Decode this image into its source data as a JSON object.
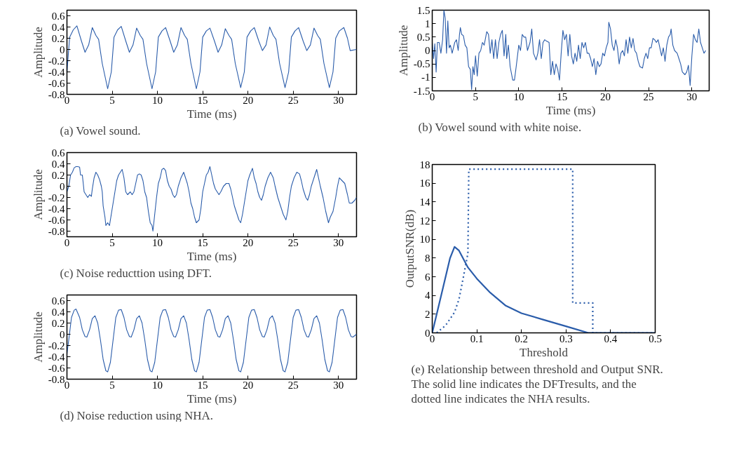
{
  "chart_data": [
    {
      "type": "line",
      "xlabel": "Time (ms)",
      "ylabel": "Amplitude",
      "annotations": [
        "(a) Vowel sound."
      ],
      "xlim": [
        0,
        32
      ],
      "ylim": [
        -0.8,
        0.7
      ],
      "xticks": [
        0,
        5,
        10,
        15,
        20,
        25,
        30
      ],
      "yticks": [
        -0.8,
        -0.6,
        -0.4,
        -0.2,
        0,
        0.2,
        0.4,
        0.6
      ],
      "grid": false,
      "line_style": "solid",
      "x": [
        0,
        0.3,
        0.7,
        1.1,
        1.6,
        2.0,
        2.4,
        2.8,
        3.2,
        3.5,
        3.9,
        4.5,
        4.9,
        5.2,
        5.6,
        6.0,
        6.5,
        6.9,
        7.3,
        7.7,
        8.1,
        8.4,
        8.8,
        9.4,
        9.8,
        10.1,
        10.5,
        10.9,
        11.4,
        11.8,
        12.2,
        12.6,
        13.0,
        13.3,
        13.7,
        14.3,
        14.7,
        15.0,
        15.4,
        15.8,
        16.3,
        16.7,
        17.1,
        17.5,
        17.9,
        18.2,
        18.6,
        19.2,
        19.6,
        19.9,
        20.3,
        20.7,
        21.2,
        21.6,
        22.0,
        22.4,
        22.8,
        23.1,
        23.5,
        24.1,
        24.5,
        24.8,
        25.2,
        25.6,
        26.1,
        26.5,
        26.9,
        27.3,
        27.7,
        28.0,
        28.4,
        29.0,
        29.4,
        29.7,
        30.1,
        30.6,
        31.0,
        31.3,
        32.0
      ],
      "series": [
        {
          "color": "#2a5caa",
          "values": [
            -0.4,
            0.22,
            0.35,
            0.42,
            0.15,
            -0.05,
            0.08,
            0.39,
            0.25,
            0.18,
            -0.25,
            -0.7,
            -0.4,
            0.22,
            0.35,
            0.41,
            0.15,
            -0.05,
            0.08,
            0.38,
            0.25,
            0.18,
            -0.25,
            -0.7,
            -0.4,
            0.22,
            0.33,
            0.39,
            0.15,
            -0.05,
            0.08,
            0.39,
            0.25,
            0.18,
            -0.25,
            -0.7,
            -0.4,
            0.22,
            0.33,
            0.38,
            0.15,
            -0.05,
            0.08,
            0.37,
            0.25,
            0.18,
            -0.25,
            -0.68,
            -0.4,
            0.22,
            0.33,
            0.39,
            0.15,
            -0.02,
            0.08,
            0.4,
            0.25,
            0.18,
            -0.25,
            -0.68,
            -0.4,
            0.22,
            0.33,
            0.39,
            0.15,
            -0.02,
            0.08,
            0.38,
            0.25,
            0.18,
            -0.25,
            -0.68,
            -0.4,
            0.2,
            0.33,
            0.39,
            0.2,
            -0.02,
            0.0
          ]
        }
      ]
    },
    {
      "type": "line",
      "xlabel": "Time (ms)",
      "ylabel": "Amplitude",
      "annotations": [
        "(b) Vowel sound with white noise."
      ],
      "xlim": [
        0,
        32
      ],
      "ylim": [
        -1.5,
        1.5
      ],
      "xticks": [
        0,
        5,
        10,
        15,
        20,
        25,
        30
      ],
      "yticks": [
        -1.5,
        -1,
        -0.5,
        0,
        0.5,
        1,
        1.5
      ],
      "grid": false,
      "line_style": "solid",
      "x": [
        0,
        0.15,
        0.3,
        0.45,
        0.6,
        0.8,
        1.0,
        1.2,
        1.35,
        1.5,
        1.65,
        1.8,
        1.95,
        2.1,
        2.3,
        2.6,
        2.8,
        3.0,
        3.15,
        3.25,
        3.4,
        3.6,
        3.8,
        4.0,
        4.2,
        4.4,
        4.55,
        4.7,
        4.85,
        5.0,
        5.2,
        5.4,
        5.6,
        5.8,
        6.0,
        6.3,
        6.5,
        6.7,
        6.9,
        7.1,
        7.3,
        7.5,
        7.7,
        7.9,
        8.1,
        8.3,
        8.5,
        8.6,
        8.8,
        9.0,
        9.3,
        9.5,
        9.7,
        10.0,
        10.2,
        10.4,
        10.6,
        10.8,
        11.0,
        11.3,
        11.5,
        11.7,
        12.0,
        12.2,
        12.4,
        12.6,
        12.8,
        13.0,
        13.2,
        13.5,
        13.7,
        13.9,
        14.1,
        14.3,
        14.5,
        14.7,
        14.9,
        15.1,
        15.3,
        15.5,
        15.7,
        15.9,
        16.1,
        16.3,
        16.5,
        16.7,
        16.9,
        17.1,
        17.3,
        17.5,
        17.7,
        17.9,
        18.1,
        18.3,
        18.5,
        18.7,
        18.9,
        19.1,
        19.3,
        19.5,
        19.7,
        19.9,
        20.1,
        20.3,
        20.4,
        20.6,
        20.8,
        21.0,
        21.2,
        21.4,
        21.6,
        21.8,
        22.0,
        22.2,
        22.4,
        22.6,
        22.8,
        23.0,
        23.2,
        23.4,
        23.6,
        23.8,
        24.0,
        24.3,
        24.5,
        24.7,
        24.9,
        25.1,
        25.3,
        25.5,
        25.7,
        25.9,
        26.1,
        26.3,
        26.5,
        26.7,
        26.9,
        27.1,
        27.3,
        27.5,
        27.6,
        27.8,
        28.0,
        28.3,
        28.5,
        28.7,
        28.9,
        29.2,
        29.4,
        29.6,
        29.8,
        30.0,
        30.2,
        30.4,
        30.6,
        30.8,
        31.0,
        31.2,
        31.4,
        31.6
      ],
      "series": [
        {
          "color": "#2a5caa",
          "values": [
            0.3,
            -0.3,
            0.25,
            -0.8,
            0.3,
            0.3,
            -0.1,
            0.4,
            1.5,
            1.2,
            -0.1,
            1.1,
            0.1,
            0.2,
            -0.1,
            0.3,
            0.4,
            0.0,
            0.6,
            0.85,
            0.6,
            0.55,
            0.2,
            0.1,
            -0.6,
            -0.7,
            -1.45,
            -0.6,
            -0.9,
            -0.2,
            -0.95,
            -0.1,
            0.0,
            0.3,
            0.2,
            0.7,
            0.6,
            -0.1,
            0.4,
            -0.3,
            0.4,
            -0.3,
            0.3,
            0.6,
            0.75,
            -0.2,
            0.6,
            -0.3,
            0.2,
            -0.6,
            -1.1,
            -1.1,
            -0.6,
            0.2,
            0.0,
            0.6,
            0.5,
            0.5,
            0.0,
            0.3,
            0.8,
            -0.1,
            -0.35,
            -0.1,
            0.4,
            -0.3,
            0.3,
            0.4,
            0.35,
            0.3,
            -0.9,
            -0.4,
            -0.9,
            -0.5,
            -0.7,
            -1.1,
            -0.1,
            0.75,
            0.4,
            0.6,
            -0.2,
            0.6,
            -0.2,
            -0.5,
            -0.1,
            -0.4,
            0.2,
            -0.3,
            0.3,
            0.1,
            0.3,
            -0.1,
            -0.1,
            -0.3,
            -0.6,
            -0.3,
            -0.9,
            -0.4,
            -0.6,
            -0.5,
            -0.1,
            -0.2,
            0.1,
            0.3,
            1.05,
            0.8,
            0.2,
            0.0,
            0.4,
            0.1,
            -0.5,
            -0.1,
            0.0,
            -0.2,
            0.4,
            -0.1,
            0.5,
            0.1,
            0.45,
            0.0,
            -0.1,
            -0.4,
            -0.6,
            -0.65,
            -0.3,
            -0.1,
            -0.3,
            0.1,
            0.1,
            0.45,
            0.4,
            0.3,
            0.4,
            0.1,
            -0.2,
            0.1,
            -0.4,
            0.2,
            0.5,
            0.6,
            0.8,
            0.2,
            0.0,
            -0.1,
            -0.3,
            -0.5,
            -0.8,
            -0.9,
            -0.8,
            -0.55,
            -1.3,
            -0.2,
            0.6,
            0.4,
            0.3,
            0.8,
            0.3,
            0.1,
            -0.1,
            0.0
          ]
        }
      ]
    },
    {
      "type": "line",
      "xlabel": "Time (ms)",
      "ylabel": "Amplitude",
      "annotations": [
        "(c) Noise reducttion using DFT."
      ],
      "xlim": [
        0,
        32
      ],
      "ylim": [
        -0.9,
        0.6
      ],
      "xticks": [
        0,
        5,
        10,
        15,
        20,
        25,
        30
      ],
      "yticks": [
        -0.8,
        -0.6,
        -0.4,
        -0.2,
        0,
        0.2,
        0.4,
        0.6
      ],
      "grid": false,
      "line_style": "solid",
      "x": [
        0,
        0.2,
        0.4,
        0.6,
        0.8,
        1.0,
        1.2,
        1.4,
        1.5,
        1.7,
        1.8,
        1.9,
        2.1,
        2.3,
        2.5,
        2.7,
        2.8,
        3.0,
        3.2,
        3.4,
        3.6,
        3.8,
        3.9,
        4.0,
        4.2,
        4.3,
        4.5,
        4.7,
        4.9,
        5.1,
        5.3,
        5.5,
        5.7,
        5.9,
        6.1,
        6.3,
        6.5,
        6.7,
        7.0,
        7.2,
        7.4,
        7.6,
        7.8,
        8.0,
        8.2,
        8.4,
        8.6,
        8.8,
        9.0,
        9.2,
        9.4,
        9.5,
        9.7,
        9.9,
        10.1,
        10.3,
        10.5,
        10.7,
        10.9,
        11.1,
        11.3,
        11.5,
        11.7,
        11.9,
        12.1,
        12.3,
        12.6,
        12.9,
        13.1,
        13.3,
        13.5,
        13.7,
        13.9,
        14.1,
        14.3,
        14.6,
        14.8,
        15.0,
        15.2,
        15.4,
        15.6,
        15.8,
        16.0,
        16.2,
        16.4,
        16.6,
        16.8,
        17.0,
        17.3,
        17.6,
        17.9,
        18.1,
        18.3,
        18.5,
        18.7,
        19.0,
        19.2,
        19.4,
        19.6,
        19.8,
        20.0,
        20.2,
        20.5,
        20.7,
        20.9,
        21.1,
        21.3,
        21.5,
        21.7,
        21.9,
        22.2,
        22.5,
        22.8,
        23.0,
        23.3,
        23.6,
        23.9,
        24.2,
        24.4,
        24.6,
        24.8,
        25.1,
        25.4,
        25.7,
        25.9,
        26.1,
        26.4,
        26.6,
        26.8,
        27.0,
        27.3,
        27.6,
        27.8,
        28.0,
        28.3,
        28.6,
        28.9,
        29.1,
        29.4,
        29.7,
        29.9,
        30.1,
        30.4,
        30.7,
        31.0,
        31.2,
        31.5,
        31.8,
        32.0
      ],
      "series": [
        {
          "color": "#2a5caa",
          "values": [
            -0.1,
            0.0,
            0.2,
            0.25,
            0.33,
            0.35,
            0.35,
            0.34,
            0.2,
            0.2,
            0.05,
            -0.1,
            -0.15,
            -0.2,
            -0.15,
            -0.18,
            -0.05,
            0.15,
            0.25,
            0.2,
            0.12,
            0.0,
            -0.1,
            -0.35,
            -0.55,
            -0.7,
            -0.65,
            -0.7,
            -0.5,
            -0.3,
            -0.1,
            0.1,
            0.2,
            0.25,
            0.3,
            0.15,
            -0.1,
            -0.15,
            -0.1,
            -0.15,
            -0.1,
            0.05,
            0.2,
            0.22,
            0.2,
            0.1,
            -0.1,
            -0.2,
            -0.45,
            -0.65,
            -0.7,
            -0.8,
            -0.5,
            -0.2,
            0.05,
            0.15,
            0.3,
            0.32,
            0.28,
            0.1,
            0.0,
            -0.05,
            -0.15,
            -0.2,
            -0.15,
            0.0,
            0.15,
            0.25,
            0.15,
            0.05,
            -0.1,
            -0.3,
            -0.4,
            -0.55,
            -0.65,
            -0.6,
            -0.4,
            -0.1,
            0.05,
            0.2,
            0.25,
            0.35,
            0.2,
            0.05,
            -0.05,
            -0.1,
            -0.15,
            -0.1,
            0.0,
            0.05,
            0.05,
            -0.05,
            -0.2,
            -0.35,
            -0.45,
            -0.6,
            -0.65,
            -0.5,
            -0.3,
            -0.1,
            0.1,
            0.2,
            0.32,
            0.15,
            0.05,
            -0.1,
            -0.2,
            -0.25,
            -0.15,
            0.0,
            0.15,
            0.25,
            0.15,
            0.0,
            -0.2,
            -0.35,
            -0.5,
            -0.6,
            -0.45,
            -0.2,
            0.0,
            0.15,
            0.25,
            0.22,
            0.1,
            -0.05,
            -0.2,
            -0.25,
            -0.15,
            0.0,
            0.15,
            0.3,
            0.15,
            0.0,
            -0.2,
            -0.45,
            -0.65,
            -0.55,
            -0.45,
            -0.2,
            0.0,
            0.15,
            0.1,
            0.05,
            -0.15,
            -0.3,
            -0.3,
            -0.25,
            -0.2
          ]
        }
      ]
    },
    {
      "type": "line",
      "xlabel": "Time (ms)",
      "ylabel": "Amplitude",
      "annotations": [
        "(d) Noise reduction using NHA."
      ],
      "xlim": [
        0,
        32
      ],
      "ylim": [
        -0.8,
        0.7
      ],
      "xticks": [
        0,
        5,
        10,
        15,
        20,
        25,
        30
      ],
      "yticks": [
        -0.8,
        -0.6,
        -0.4,
        -0.2,
        0,
        0.2,
        0.4,
        0.6
      ],
      "grid": false,
      "line_style": "solid",
      "x": [
        0,
        0.2,
        0.5,
        0.8,
        1.0,
        1.4,
        1.7,
        2.0,
        2.2,
        2.5,
        2.8,
        3.1,
        3.4,
        3.7,
        4.0,
        4.3,
        4.5,
        4.8,
        5.1,
        5.4,
        5.7,
        6.0,
        6.3,
        6.6,
        6.9,
        7.1,
        7.4,
        7.7,
        8.0,
        8.3,
        8.6,
        8.9,
        9.2,
        9.4,
        9.7,
        10.0,
        10.3,
        10.6,
        10.9,
        11.2,
        11.5,
        11.8,
        12.0,
        12.3,
        12.6,
        12.9,
        13.2,
        13.5,
        13.8,
        14.1,
        14.3,
        14.6,
        14.9,
        15.2,
        15.5,
        15.8,
        16.1,
        16.4,
        16.7,
        16.9,
        17.2,
        17.5,
        17.8,
        18.1,
        18.4,
        18.7,
        19.0,
        19.2,
        19.5,
        19.8,
        20.1,
        20.4,
        20.7,
        21.0,
        21.3,
        21.6,
        21.8,
        22.1,
        22.4,
        22.7,
        23.0,
        23.3,
        23.6,
        23.9,
        24.1,
        24.4,
        24.7,
        25.0,
        25.3,
        25.6,
        25.9,
        26.2,
        26.5,
        26.7,
        27.0,
        27.3,
        27.6,
        27.9,
        28.2,
        28.5,
        28.8,
        29.0,
        29.3,
        29.6,
        29.9,
        30.2,
        30.5,
        30.8,
        31.1,
        31.4,
        31.6,
        32.0
      ],
      "series": [
        {
          "color": "#2a5caa",
          "values": [
            -0.35,
            -0.1,
            0.3,
            0.43,
            0.45,
            0.3,
            0.08,
            -0.04,
            -0.05,
            0.08,
            0.28,
            0.33,
            0.2,
            -0.1,
            -0.45,
            -0.65,
            -0.67,
            -0.5,
            -0.1,
            0.3,
            0.43,
            0.44,
            0.3,
            0.08,
            -0.04,
            -0.05,
            0.08,
            0.28,
            0.33,
            0.2,
            -0.1,
            -0.45,
            -0.65,
            -0.67,
            -0.5,
            -0.1,
            0.3,
            0.43,
            0.44,
            0.3,
            0.08,
            -0.04,
            -0.05,
            0.08,
            0.28,
            0.33,
            0.2,
            -0.1,
            -0.45,
            -0.65,
            -0.67,
            -0.5,
            -0.1,
            0.3,
            0.43,
            0.44,
            0.3,
            0.08,
            -0.04,
            -0.05,
            0.08,
            0.28,
            0.33,
            0.2,
            -0.1,
            -0.45,
            -0.65,
            -0.67,
            -0.5,
            -0.1,
            0.3,
            0.43,
            0.44,
            0.3,
            0.08,
            -0.04,
            -0.05,
            0.08,
            0.28,
            0.33,
            0.2,
            -0.1,
            -0.45,
            -0.65,
            -0.67,
            -0.5,
            -0.1,
            0.3,
            0.43,
            0.44,
            0.3,
            0.08,
            -0.04,
            -0.05,
            0.08,
            0.28,
            0.33,
            0.2,
            -0.1,
            -0.45,
            -0.65,
            -0.67,
            -0.5,
            -0.1,
            0.3,
            0.43,
            0.44,
            0.3,
            0.08,
            -0.04,
            -0.05,
            0.0
          ]
        }
      ]
    },
    {
      "type": "line",
      "xlabel": "Threshold",
      "ylabel": "OutputSNR(dB)",
      "annotations": [
        "(e) Relationship between threshold and Output SNR. The solid line indicates the DFTresults, and the dotted line indicates the NHA results."
      ],
      "xlim": [
        0,
        0.5
      ],
      "ylim": [
        0,
        18
      ],
      "xticks": [
        0,
        0.1,
        0.2,
        0.3,
        0.4,
        0.5
      ],
      "yticks": [
        0,
        2,
        4,
        6,
        8,
        10,
        12,
        14,
        16,
        18
      ],
      "grid": false,
      "series": [
        {
          "color": "#2a5caa",
          "line_style": "solid",
          "x": [
            0,
            0.02,
            0.04,
            0.05,
            0.06,
            0.08,
            0.1,
            0.13,
            0.165,
            0.2,
            0.25,
            0.3,
            0.35,
            0.5
          ],
          "values": [
            0,
            4,
            8,
            9.2,
            8.8,
            7,
            5.8,
            4.3,
            2.9,
            2.1,
            1.4,
            0.7,
            0,
            0
          ]
        },
        {
          "color": "#2a5caa",
          "line_style": "dotted",
          "x": [
            0.01,
            0.03,
            0.05,
            0.06,
            0.07,
            0.08,
            0.082,
            0.315,
            0.315,
            0.36,
            0.36,
            0.5
          ],
          "values": [
            0,
            0.8,
            2.2,
            3.6,
            6,
            8.5,
            17.5,
            17.5,
            3.2,
            3.2,
            0,
            0
          ]
        }
      ]
    }
  ]
}
